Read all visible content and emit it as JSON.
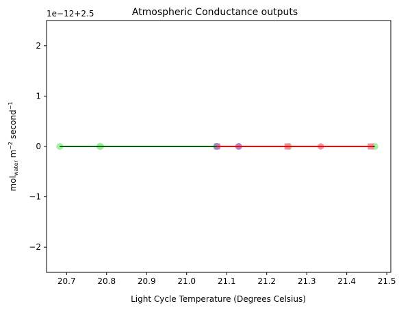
{
  "chart_data": {
    "type": "scatter",
    "title": "Atmospheric Conductance outputs",
    "xlabel": "Light Cycle Temperature (Degrees Celsius)",
    "ylabel_main": "mol",
    "ylabel_sub": "water",
    "ylabel_rest1": " m",
    "ylabel_sup1": "−2",
    "ylabel_rest2": " second",
    "ylabel_sup2": "−1",
    "offset_text": "1e−12+2.5",
    "xlim": [
      20.65,
      21.51
    ],
    "ylim": [
      -2.5,
      2.5
    ],
    "x_ticks": [
      20.7,
      20.8,
      20.9,
      21.0,
      21.1,
      21.2,
      21.3,
      21.4,
      21.5
    ],
    "x_tick_labels": [
      "20.7",
      "20.8",
      "20.9",
      "21.0",
      "21.1",
      "21.2",
      "21.3",
      "21.4",
      "21.5"
    ],
    "y_ticks": [
      -2,
      -1,
      0,
      1,
      2
    ],
    "y_tick_labels": [
      "−2",
      "−1",
      "0",
      "1",
      "2"
    ],
    "grid": false,
    "series": [
      {
        "color": "#90ee90",
        "marker": "circle",
        "points": [
          [
            20.683,
            0
          ],
          [
            20.783,
            0
          ],
          [
            20.785,
            0
          ],
          [
            21.075,
            0
          ],
          [
            21.255,
            0
          ],
          [
            21.47,
            0
          ]
        ]
      },
      {
        "color": "#f08090",
        "marker": "hexagon",
        "points": [
          [
            21.077,
            0
          ],
          [
            21.13,
            0
          ],
          [
            21.335,
            0
          ]
        ]
      },
      {
        "color": "#f08090",
        "marker": "square",
        "points": [
          [
            21.076,
            0
          ],
          [
            21.252,
            0
          ],
          [
            21.46,
            0
          ]
        ]
      },
      {
        "color": "#a080d0",
        "marker": "circle",
        "points": [
          [
            21.075,
            0
          ],
          [
            21.13,
            0
          ]
        ]
      }
    ],
    "lines": [
      {
        "color": "#006400",
        "x": [
          20.683,
          21.47
        ],
        "y": [
          0,
          0
        ]
      },
      {
        "color": "#ff0000",
        "x": [
          21.075,
          21.465
        ],
        "y": [
          0,
          0
        ]
      }
    ]
  }
}
